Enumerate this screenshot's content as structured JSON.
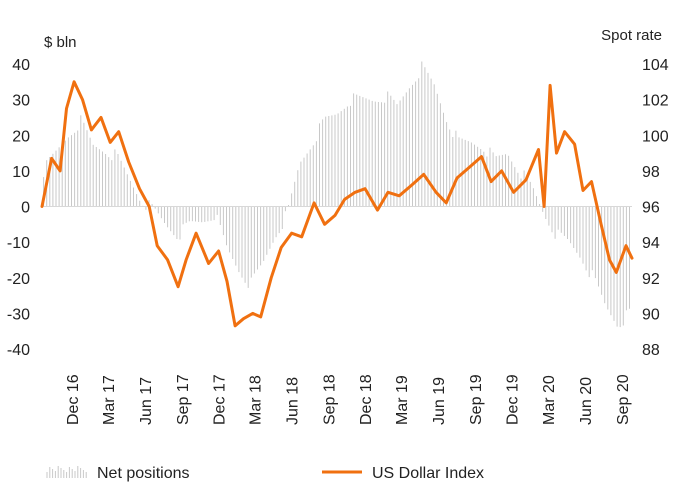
{
  "chart_data": {
    "type": "bar+line",
    "left_axis": {
      "label": "$ bln",
      "ticks": [
        40,
        30,
        20,
        10,
        0,
        -10,
        -20,
        -30,
        -40
      ],
      "range": [
        -40,
        40
      ]
    },
    "right_axis": {
      "label": "Spot rate",
      "ticks": [
        104,
        102,
        100,
        98,
        96,
        94,
        92,
        90,
        88
      ],
      "range": [
        88,
        104
      ]
    },
    "x_axis": {
      "range": [
        "2016-10-01",
        "2020-10-10"
      ],
      "ticks": [
        {
          "label": "Dec 16",
          "date": "2016-12-15"
        },
        {
          "label": "Mar 17",
          "date": "2017-03-15"
        },
        {
          "label": "Jun 17",
          "date": "2017-06-15"
        },
        {
          "label": "Sep 17",
          "date": "2017-09-15"
        },
        {
          "label": "Dec 17",
          "date": "2017-12-15"
        },
        {
          "label": "Mar 18",
          "date": "2018-03-15"
        },
        {
          "label": "Jun 18",
          "date": "2018-06-15"
        },
        {
          "label": "Sep 18",
          "date": "2018-09-15"
        },
        {
          "label": "Dec 18",
          "date": "2018-12-15"
        },
        {
          "label": "Mar 19",
          "date": "2019-03-15"
        },
        {
          "label": "Jun 19",
          "date": "2019-06-15"
        },
        {
          "label": "Sep 19",
          "date": "2019-09-15"
        },
        {
          "label": "Dec 19",
          "date": "2019-12-15"
        },
        {
          "label": "Mar 20",
          "date": "2020-03-15"
        },
        {
          "label": "Jun 20",
          "date": "2020-06-15"
        },
        {
          "label": "Sep 20",
          "date": "2020-09-15"
        }
      ]
    },
    "series": [
      {
        "name": "Net positions",
        "type": "bar",
        "axis": "left",
        "color": "#c8c8c8",
        "points": [
          [
            "2016-10-05",
            10
          ],
          [
            "2016-11-05",
            15
          ],
          [
            "2016-12-05",
            20
          ],
          [
            "2017-01-05",
            24
          ],
          [
            "2017-02-05",
            17
          ],
          [
            "2017-03-05",
            16
          ],
          [
            "2017-04-05",
            14
          ],
          [
            "2017-05-05",
            8
          ],
          [
            "2017-06-05",
            2
          ],
          [
            "2017-07-05",
            -1
          ],
          [
            "2017-08-05",
            -5
          ],
          [
            "2017-09-05",
            -8
          ],
          [
            "2017-10-05",
            -5
          ],
          [
            "2017-11-05",
            -4
          ],
          [
            "2017-12-05",
            -2
          ],
          [
            "2018-01-05",
            -12
          ],
          [
            "2018-02-05",
            -18
          ],
          [
            "2018-03-05",
            -22
          ],
          [
            "2018-04-05",
            -16
          ],
          [
            "2018-05-05",
            -8
          ],
          [
            "2018-06-05",
            -2
          ],
          [
            "2018-07-05",
            12
          ],
          [
            "2018-08-05",
            18
          ],
          [
            "2018-09-05",
            24
          ],
          [
            "2018-10-05",
            26
          ],
          [
            "2018-11-05",
            30
          ],
          [
            "2018-12-05",
            30
          ],
          [
            "2019-01-05",
            30
          ],
          [
            "2019-02-05",
            31
          ],
          [
            "2019-03-05",
            28
          ],
          [
            "2019-04-05",
            34
          ],
          [
            "2019-05-05",
            39
          ],
          [
            "2019-06-05",
            34
          ],
          [
            "2019-07-05",
            25
          ],
          [
            "2019-08-05",
            18
          ],
          [
            "2019-09-05",
            18
          ],
          [
            "2019-10-05",
            17
          ],
          [
            "2019-11-05",
            13
          ],
          [
            "2019-12-05",
            15
          ],
          [
            "2020-01-05",
            10
          ],
          [
            "2020-02-05",
            5
          ],
          [
            "2020-03-05",
            -2
          ],
          [
            "2020-04-05",
            -8
          ],
          [
            "2020-05-05",
            -10
          ],
          [
            "2020-06-05",
            -14
          ],
          [
            "2020-07-05",
            -20
          ],
          [
            "2020-08-05",
            -28
          ],
          [
            "2020-09-05",
            -33
          ],
          [
            "2020-10-05",
            -30
          ]
        ]
      },
      {
        "name": "US Dollar Index",
        "type": "line",
        "axis": "right",
        "color": "#f07010",
        "points": [
          [
            "2016-10-01",
            96.0
          ],
          [
            "2016-10-25",
            98.7
          ],
          [
            "2016-11-15",
            98.0
          ],
          [
            "2016-12-01",
            101.5
          ],
          [
            "2016-12-20",
            103.0
          ],
          [
            "2017-01-10",
            102.0
          ],
          [
            "2017-02-01",
            100.3
          ],
          [
            "2017-02-25",
            101.0
          ],
          [
            "2017-03-20",
            99.6
          ],
          [
            "2017-04-10",
            100.2
          ],
          [
            "2017-05-05",
            98.5
          ],
          [
            "2017-06-01",
            97.0
          ],
          [
            "2017-06-25",
            96.0
          ],
          [
            "2017-07-15",
            93.8
          ],
          [
            "2017-08-10",
            93.0
          ],
          [
            "2017-09-05",
            91.5
          ],
          [
            "2017-09-25",
            93.0
          ],
          [
            "2017-10-20",
            94.5
          ],
          [
            "2017-11-20",
            92.8
          ],
          [
            "2017-12-15",
            93.5
          ],
          [
            "2018-01-05",
            91.8
          ],
          [
            "2018-01-25",
            89.3
          ],
          [
            "2018-02-15",
            89.7
          ],
          [
            "2018-03-10",
            90.0
          ],
          [
            "2018-03-30",
            89.8
          ],
          [
            "2018-04-25",
            92.0
          ],
          [
            "2018-05-20",
            93.7
          ],
          [
            "2018-06-15",
            94.5
          ],
          [
            "2018-07-10",
            94.3
          ],
          [
            "2018-08-10",
            96.2
          ],
          [
            "2018-09-05",
            95.0
          ],
          [
            "2018-10-01",
            95.5
          ],
          [
            "2018-10-25",
            96.4
          ],
          [
            "2018-11-20",
            96.8
          ],
          [
            "2018-12-15",
            97.0
          ],
          [
            "2019-01-15",
            95.8
          ],
          [
            "2019-02-10",
            96.8
          ],
          [
            "2019-03-10",
            96.6
          ],
          [
            "2019-04-10",
            97.2
          ],
          [
            "2019-05-10",
            97.8
          ],
          [
            "2019-06-10",
            96.8
          ],
          [
            "2019-07-05",
            96.2
          ],
          [
            "2019-08-01",
            97.6
          ],
          [
            "2019-09-01",
            98.2
          ],
          [
            "2019-10-01",
            98.8
          ],
          [
            "2019-10-25",
            97.4
          ],
          [
            "2019-11-20",
            98.0
          ],
          [
            "2019-12-20",
            96.8
          ],
          [
            "2020-01-20",
            97.5
          ],
          [
            "2020-02-20",
            99.2
          ],
          [
            "2020-03-05",
            96.0
          ],
          [
            "2020-03-20",
            102.8
          ],
          [
            "2020-04-05",
            99.0
          ],
          [
            "2020-04-25",
            100.2
          ],
          [
            "2020-05-20",
            99.5
          ],
          [
            "2020-06-10",
            96.9
          ],
          [
            "2020-07-01",
            97.4
          ],
          [
            "2020-07-25",
            95.0
          ],
          [
            "2020-08-15",
            93.0
          ],
          [
            "2020-09-01",
            92.3
          ],
          [
            "2020-09-25",
            93.8
          ],
          [
            "2020-10-10",
            93.1
          ]
        ]
      }
    ],
    "legend": {
      "placement": "bottom"
    }
  }
}
